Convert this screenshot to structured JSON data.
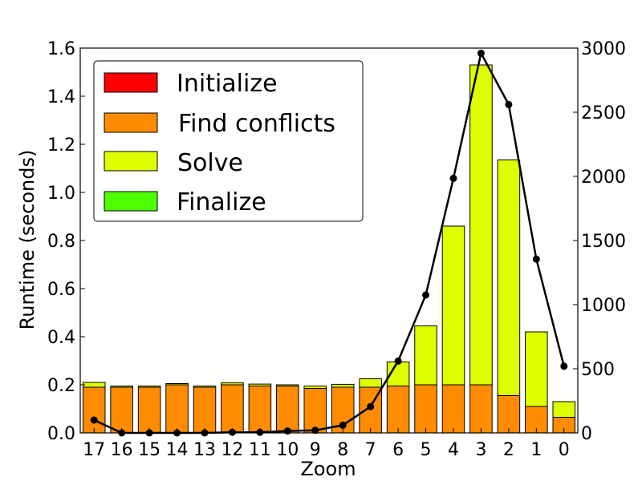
{
  "chart_data": {
    "type": "bar",
    "stacked": true,
    "title": "",
    "xlabel": "Zoom",
    "ylabel": "Runtime (seconds)",
    "ylim": [
      0,
      1.6
    ],
    "y_ticks": [
      "0.0",
      "0.2",
      "0.4",
      "0.6",
      "0.8",
      "1.0",
      "1.2",
      "1.4",
      "1.6"
    ],
    "y2lim": [
      0,
      3000
    ],
    "y2_ticks": [
      "0",
      "500",
      "1000",
      "1500",
      "2000",
      "2500",
      "3000"
    ],
    "categories": [
      "17",
      "16",
      "15",
      "14",
      "13",
      "12",
      "11",
      "10",
      "9",
      "8",
      "7",
      "6",
      "5",
      "4",
      "3",
      "2",
      "1",
      "0"
    ],
    "series": [
      {
        "name": "Initialize",
        "color": "#ff0000",
        "values": [
          0.0,
          0.0,
          0.0,
          0.0,
          0.0,
          0.0,
          0.0,
          0.0,
          0.0,
          0.0,
          0.0,
          0.0,
          0.0,
          0.0,
          0.0,
          0.0,
          0.0,
          0.0
        ]
      },
      {
        "name": "Find conflicts",
        "color": "#ff8c00",
        "values": [
          0.19,
          0.19,
          0.19,
          0.2,
          0.19,
          0.2,
          0.195,
          0.195,
          0.185,
          0.19,
          0.19,
          0.195,
          0.2,
          0.2,
          0.2,
          0.155,
          0.11,
          0.065
        ]
      },
      {
        "name": "Solve",
        "color": "#ddff00",
        "values": [
          0.02,
          0.005,
          0.005,
          0.005,
          0.005,
          0.008,
          0.008,
          0.005,
          0.01,
          0.012,
          0.035,
          0.1,
          0.245,
          0.66,
          1.33,
          0.98,
          0.31,
          0.065
        ]
      },
      {
        "name": "Finalize",
        "color": "#4dff00",
        "values": [
          0.0,
          0.0,
          0.0,
          0.0,
          0.0,
          0.0,
          0.0,
          0.0,
          0.0,
          0.0,
          0.0,
          0.0,
          0.0,
          0.0,
          0.0,
          0.0,
          0.0,
          0.0
        ]
      }
    ],
    "line_series": {
      "axis": "right",
      "color": "#000000",
      "values": [
        100,
        0,
        0,
        0,
        0,
        5,
        5,
        15,
        20,
        60,
        205,
        560,
        1075,
        1985,
        2960,
        2560,
        1355,
        520
      ]
    },
    "legend": {
      "placement": "top-left",
      "entries": [
        "Initialize",
        "Find conflicts",
        "Solve",
        "Finalize"
      ]
    },
    "grid": false
  }
}
